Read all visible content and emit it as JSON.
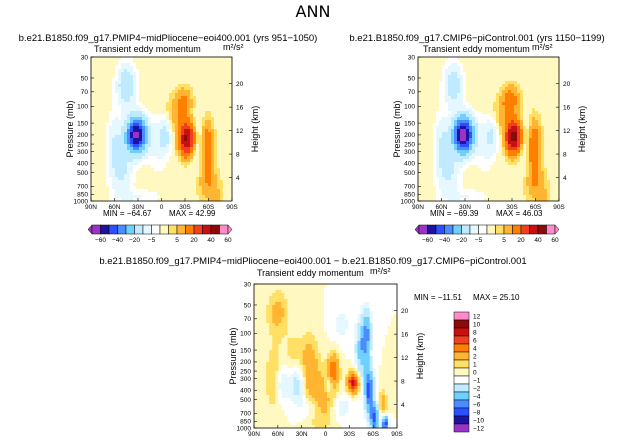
{
  "page": {
    "season": "ANN"
  },
  "colors": {
    "deep_purple": "#9a34c8",
    "navy": "#1c14a0",
    "blue": "#2c50ff",
    "mid_blue": "#4a8cff",
    "light_blue": "#6fd0ff",
    "pale_blue": "#bfeaff",
    "white": "#ffffff",
    "pale_yellow": "#fff8c0",
    "yellow": "#ffe064",
    "gold": "#ffb432",
    "orange": "#ff8000",
    "red_orange": "#f04020",
    "red": "#c81010",
    "dark_red": "#8c0a0a",
    "pink": "#ff8cc8"
  },
  "chart_data": [
    {
      "id": "panel1",
      "type": "heatmap",
      "header": "b.e21.B1850.f09_g17.PMIP4−midPliocene−eoi400.001  (yrs 951−1050)",
      "title": "Transient eddy momentum",
      "units": "m²/s²",
      "ylabel": "Pressure (mb)",
      "y2label": "Height (km)",
      "x_ticks": [
        "90N",
        "60N",
        "30N",
        "0",
        "30S",
        "60S",
        "90S"
      ],
      "p_ticks": [
        "30",
        "50",
        "70",
        "100",
        "150",
        "200",
        "250",
        "300",
        "400",
        "500",
        "700",
        "850",
        "1000"
      ],
      "h_ticks": [
        "20",
        "16",
        "12",
        "8",
        "4"
      ],
      "min_label": "MIN = −64.67",
      "max_label": "MAX = 42.99",
      "blobs": [
        {
          "lat": -32,
          "p": 220,
          "value": 42,
          "w": 7,
          "h": 0.28
        },
        {
          "lat": -28,
          "p": 90,
          "value": 12,
          "w": 8,
          "h": 0.25
        },
        {
          "lat": -58,
          "p": 270,
          "value": 18,
          "w": 6,
          "h": 0.45
        },
        {
          "lat": -48,
          "p": 250,
          "value": -6,
          "w": 7,
          "h": 0.45
        },
        {
          "lat": -5,
          "p": 200,
          "value": -12,
          "w": 6,
          "h": 0.3
        },
        {
          "lat": 32,
          "p": 200,
          "value": -64,
          "w": 9,
          "h": 0.3
        },
        {
          "lat": 45,
          "p": 60,
          "value": -18,
          "w": 8,
          "h": 0.35
        },
        {
          "lat": 52,
          "p": 450,
          "value": -12,
          "w": 10,
          "h": 0.45
        },
        {
          "lat": 30,
          "p": 900,
          "value": -5,
          "w": 20,
          "h": 0.12
        },
        {
          "lat": 60,
          "p": 220,
          "value": -8,
          "w": 6,
          "h": 0.45
        },
        {
          "lat": 5,
          "p": 250,
          "value": -6,
          "w": 8,
          "h": 0.45
        },
        {
          "lat": -60,
          "p": 650,
          "value": 8,
          "w": 10,
          "h": 0.3
        },
        {
          "lat": -15,
          "p": 130,
          "value": 6,
          "w": 8,
          "h": 0.3
        },
        {
          "lat": -70,
          "p": 1000,
          "value": 6,
          "w": 6,
          "h": 0.2
        }
      ]
    },
    {
      "id": "panel2",
      "type": "heatmap",
      "header": "b.e21.B1850.f09_g17.CMIP6−piControl.001  (yrs 1150−1199)",
      "title": "Transient eddy momentum",
      "units": "m²/s²",
      "ylabel": "Pressure (mb)",
      "y2label": "Height (km)",
      "x_ticks": [
        "90N",
        "60N",
        "30N",
        "0",
        "30S",
        "60S",
        "90S"
      ],
      "p_ticks": [
        "30",
        "50",
        "70",
        "100",
        "150",
        "200",
        "250",
        "300",
        "400",
        "500",
        "700",
        "850",
        "1000"
      ],
      "h_ticks": [
        "20",
        "16",
        "12",
        "8",
        "4"
      ],
      "min_label": "MIN = −69.39",
      "max_label": "MAX = 46.03",
      "blobs": [
        {
          "lat": -32,
          "p": 210,
          "value": 46,
          "w": 7,
          "h": 0.28
        },
        {
          "lat": -28,
          "p": 85,
          "value": 14,
          "w": 8,
          "h": 0.25
        },
        {
          "lat": -58,
          "p": 270,
          "value": 20,
          "w": 6,
          "h": 0.45
        },
        {
          "lat": -48,
          "p": 250,
          "value": -6,
          "w": 7,
          "h": 0.45
        },
        {
          "lat": -5,
          "p": 200,
          "value": -10,
          "w": 6,
          "h": 0.3
        },
        {
          "lat": 32,
          "p": 200,
          "value": -69,
          "w": 9,
          "h": 0.3
        },
        {
          "lat": 45,
          "p": 60,
          "value": -16,
          "w": 8,
          "h": 0.35
        },
        {
          "lat": 52,
          "p": 450,
          "value": -12,
          "w": 10,
          "h": 0.45
        },
        {
          "lat": 30,
          "p": 900,
          "value": -5,
          "w": 20,
          "h": 0.12
        },
        {
          "lat": 60,
          "p": 220,
          "value": -8,
          "w": 6,
          "h": 0.45
        },
        {
          "lat": 5,
          "p": 250,
          "value": -6,
          "w": 8,
          "h": 0.45
        },
        {
          "lat": -60,
          "p": 650,
          "value": 8,
          "w": 10,
          "h": 0.3
        },
        {
          "lat": -15,
          "p": 130,
          "value": 6,
          "w": 8,
          "h": 0.3
        },
        {
          "lat": -70,
          "p": 1000,
          "value": 6,
          "w": 6,
          "h": 0.2
        }
      ]
    },
    {
      "id": "panel3",
      "type": "heatmap",
      "header": "b.e21.B1850.f09_g17.PMIP4−midPliocene−eoi400.001  −  b.e21.B1850.f09_g17.CMIP6−piControl.001",
      "title": "Transient eddy momentum",
      "units": "m²/s²",
      "ylabel": "Pressure (mb)",
      "y2label": "Height (km)",
      "x_ticks": [
        "90N",
        "60N",
        "30N",
        "0",
        "30S",
        "60S",
        "90S"
      ],
      "p_ticks": [
        "30",
        "50",
        "70",
        "100",
        "150",
        "200",
        "250",
        "300",
        "400",
        "500",
        "700",
        "850",
        "1000"
      ],
      "h_ticks": [
        "20",
        "16",
        "12",
        "8",
        "4"
      ],
      "min_label": "MIN = −11.51",
      "max_label": "MAX = 25.10",
      "blobs": [
        {
          "lat": -35,
          "p": 330,
          "value": 9,
          "w": 5,
          "h": 0.18
        },
        {
          "lat": -45,
          "p": 150,
          "value": -5,
          "w": 5,
          "h": 0.5
        },
        {
          "lat": -55,
          "p": 400,
          "value": -9,
          "w": 4,
          "h": 0.4
        },
        {
          "lat": -52,
          "p": 100,
          "value": -6,
          "w": 4,
          "h": 0.4
        },
        {
          "lat": -10,
          "p": 250,
          "value": 5,
          "w": 5,
          "h": 0.3
        },
        {
          "lat": -5,
          "p": 350,
          "value": -3,
          "w": 4,
          "h": 0.15
        },
        {
          "lat": 20,
          "p": 230,
          "value": 3,
          "w": 8,
          "h": 0.6
        },
        {
          "lat": 5,
          "p": 500,
          "value": 3,
          "w": 12,
          "h": 0.5
        },
        {
          "lat": 35,
          "p": 350,
          "value": -3,
          "w": 7,
          "h": 0.3
        },
        {
          "lat": 55,
          "p": 350,
          "value": -2.5,
          "w": 6,
          "h": 0.3
        },
        {
          "lat": 65,
          "p": 300,
          "value": 2,
          "w": 8,
          "h": 0.6
        },
        {
          "lat": 60,
          "p": 60,
          "value": 2.5,
          "w": 10,
          "h": 0.4
        },
        {
          "lat": 20,
          "p": 600,
          "value": -2,
          "w": 10,
          "h": 0.2
        },
        {
          "lat": -20,
          "p": 600,
          "value": -2,
          "w": 8,
          "h": 0.2
        },
        {
          "lat": -62,
          "p": 800,
          "value": -8,
          "w": 4,
          "h": 0.25
        },
        {
          "lat": -75,
          "p": 900,
          "value": -10,
          "w": 3,
          "h": 0.15
        },
        {
          "lat": -72,
          "p": 600,
          "value": 3,
          "w": 4,
          "h": 0.3
        },
        {
          "lat": -20,
          "p": 80,
          "value": -1.5,
          "w": 8,
          "h": 0.3
        },
        {
          "lat": 40,
          "p": 150,
          "value": 1.5,
          "w": 8,
          "h": 0.3
        }
      ]
    }
  ],
  "colorbar_abs": {
    "labels": [
      "−60",
      "−40",
      "−20",
      "−5",
      "5",
      "20",
      "40",
      "60"
    ],
    "tick_levels": [
      -60,
      -40,
      -20,
      -5,
      5,
      20,
      40,
      60
    ],
    "levels": [
      -60,
      -50,
      -40,
      -30,
      -20,
      -10,
      -5,
      -2,
      2,
      5,
      10,
      20,
      30,
      40,
      50,
      60
    ]
  },
  "colorbar_diff": {
    "labels": [
      "12",
      "10",
      "8",
      "6",
      "4",
      "2",
      "1",
      "0",
      "−1",
      "−2",
      "−4",
      "−6",
      "−8",
      "−10",
      "−12"
    ],
    "levels": [
      12,
      10,
      8,
      6,
      4,
      2,
      1,
      0,
      -1,
      -2,
      -4,
      -6,
      -8,
      -10,
      -12
    ]
  }
}
